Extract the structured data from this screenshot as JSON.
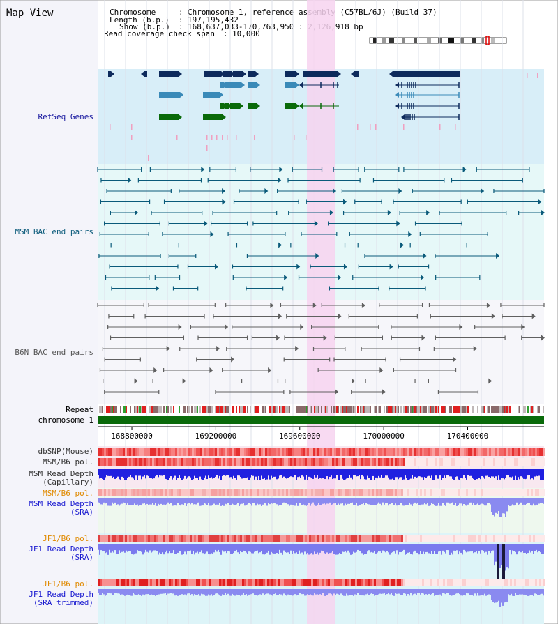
{
  "view": {
    "title": "Map View"
  },
  "info": {
    "chromosome_key": "Chromosome",
    "chromosome_value": "Chromosome 1, reference assembly (C57BL/6J) (Build 37)",
    "length_key": "Length (b.p.)",
    "length_value": "197,195,432",
    "show_key": "Show (b.p.)",
    "show_value": "168,637,033-170,763,950 : 2,126,918 bp",
    "coverage_key": "Read coverage check span",
    "coverage_value": "10,000"
  },
  "colors": {
    "background": "#ffffff",
    "left_panel": "#f4f4fa",
    "refseq_bg": "#d8eef8",
    "msm_bac_bg": "#e6f8f8",
    "b6n_bac_bg": "#f6f6fa",
    "highlight": "#f7d4f0",
    "refseq_dark": "#0d2a5c",
    "refseq_mid": "#3a8ab8",
    "refseq_green": "#0a6a0a",
    "msm_bac": "#0a5a7a",
    "b6n_bac": "#606060",
    "chromosome_bar": "#0a6a0a"
  },
  "tracks": {
    "refseq": {
      "label": "RefSeq Genes"
    },
    "msm_bac": {
      "label": "MSM BAC end pairs"
    },
    "b6n_bac": {
      "label": "B6N BAC end pairs"
    },
    "repeat": {
      "label": "Repeat"
    },
    "chromosome": {
      "label": "chromosome 1"
    },
    "dbsnp": {
      "label": "dbSNP(Mouse)"
    },
    "msm_b6_pol_cap": {
      "label": "MSM/B6 pol."
    },
    "msm_depth_cap": {
      "label_line1": "MSM Read Depth",
      "label_line2": "(Capillary)"
    },
    "msm_b6_pol_sra": {
      "label": "MSM/B6 pol."
    },
    "msm_depth_sra": {
      "label_line1": "MSM Read Depth",
      "label_line2": "(SRA)"
    },
    "jf1_b6_pol": {
      "label": "JF1/B6 pol."
    },
    "jf1_depth_sra": {
      "label_line1": "JF1 Read Depth",
      "label_line2": "(SRA)"
    },
    "jf1_b6_pol_trim": {
      "label": "JF1/B6 pol."
    },
    "jf1_depth_trim": {
      "label_line1": "JF1 Read Depth",
      "label_line2": "(SRA trimmed)"
    }
  },
  "axis": {
    "ticks": [
      {
        "value": 168800000,
        "label": "168800000"
      },
      {
        "value": 169200000,
        "label": "169200000"
      },
      {
        "value": 169600000,
        "label": "169600000"
      },
      {
        "value": 170000000,
        "label": "170000000"
      },
      {
        "value": 170400000,
        "label": "170400000"
      }
    ]
  }
}
